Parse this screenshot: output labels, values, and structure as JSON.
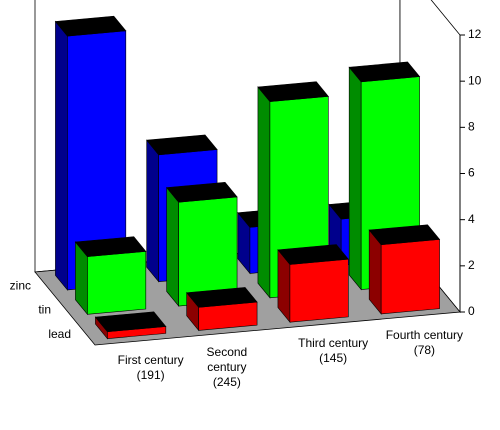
{
  "chart_data": {
    "type": "bar3d",
    "categories": [
      "First century (191)",
      "Second century (245)",
      "Third century (145)",
      "Fourth century (78)"
    ],
    "series": [
      {
        "name": "zinc",
        "color": "#0000ff",
        "values": [
          11,
          5.5,
          2,
          2
        ]
      },
      {
        "name": "tin",
        "color": "#00ff00",
        "values": [
          2.5,
          4.5,
          8.5,
          9
        ]
      },
      {
        "name": "lead",
        "color": "#ff0000",
        "values": [
          0.3,
          1,
          2.5,
          3
        ]
      }
    ],
    "ylim": [
      0,
      12
    ],
    "yticks": [
      0,
      2,
      4,
      6,
      8,
      10,
      12
    ]
  }
}
